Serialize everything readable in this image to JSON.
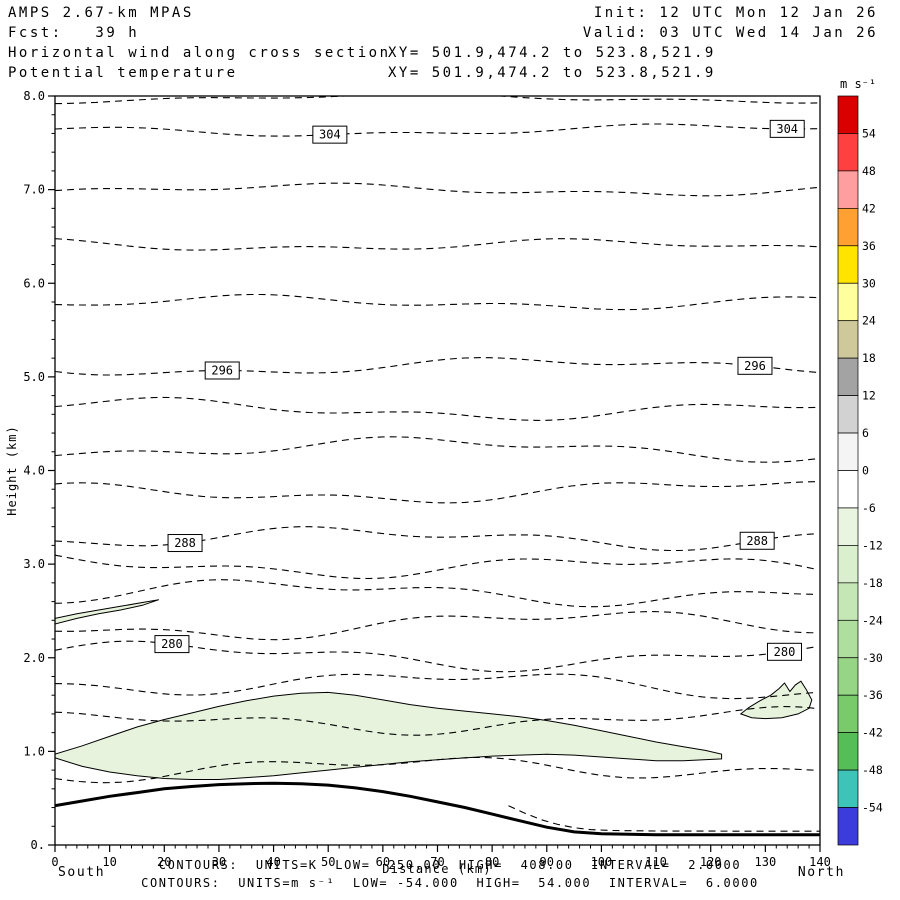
{
  "header": {
    "model": "AMPS 2.67-km MPAS",
    "fcst": "Fcst:   39 h",
    "field1": "Horizontal wind along cross section",
    "field2": "Potential temperature",
    "xy1": "XY= 501.9,474.2 to 523.8,521.9",
    "xy2": "XY= 501.9,474.2 to 523.8,521.9",
    "init": "Init: 12 UTC Mon 12 Jan 26",
    "valid": "Valid: 03 UTC Wed 14 Jan 26"
  },
  "footer": {
    "contours_k": "CONTOURS:  UNITS=K  LOW=  250.00  HIGH=  408.00  INTERVAL=  2.0000",
    "contours_ms": "CONTOURS:  UNITS=m s⁻¹  LOW= -54.000  HIGH=  54.000  INTERVAL=  6.0000",
    "xlabel": "Distance (km)",
    "south": "South",
    "north": "North"
  },
  "chart_data": {
    "type": "contour-cross-section",
    "title": "Horizontal wind along cross section / Potential temperature",
    "xlabel": "Distance (km)",
    "ylabel": "Height (km)",
    "xlim": [
      0,
      140
    ],
    "ylim": [
      0,
      8
    ],
    "theta_units": "K",
    "theta_low": 250.0,
    "theta_high": 408.0,
    "theta_interval": 2.0,
    "wind_units": "m s⁻¹",
    "wind_low": -54.0,
    "wind_high": 54.0,
    "wind_interval": 6.0,
    "x_tick_labels": [
      "0",
      "10",
      "20",
      "30",
      "40",
      "50",
      "60",
      "70",
      "80",
      "90",
      "100",
      "110",
      "120",
      "130",
      "140"
    ],
    "y_ticks": [
      {
        "v": 8,
        "label": "8.0"
      },
      {
        "v": 7,
        "label": "7.0"
      },
      {
        "v": 6,
        "label": "6.0"
      },
      {
        "v": 5,
        "label": "5.0"
      },
      {
        "v": 4,
        "label": "4.0"
      },
      {
        "v": 3,
        "label": "3.0"
      },
      {
        "v": 2,
        "label": "2.0"
      },
      {
        "v": 1,
        "label": "1.0"
      },
      {
        "v": 0,
        "label": "0."
      }
    ],
    "theta_contours": [
      {
        "value": 306,
        "height_km": 7.97
      },
      {
        "value": 304,
        "height_km": 7.63
      },
      {
        "value": 302,
        "height_km": 7.01
      },
      {
        "value": 300,
        "height_km": 6.4
      },
      {
        "value": 298,
        "height_km": 5.78
      },
      {
        "value": 296,
        "height_km": 5.12
      },
      {
        "value": 294,
        "height_km": 4.66
      },
      {
        "value": 292,
        "height_km": 4.22
      },
      {
        "value": 290,
        "height_km": 3.76
      },
      {
        "value": 288,
        "height_km": 3.3
      },
      {
        "value": 286,
        "height_km": 2.98
      },
      {
        "value": 284,
        "height_km": 2.67
      },
      {
        "value": 282,
        "height_km": 2.36
      },
      {
        "value": 280,
        "height_km": 2.04
      },
      {
        "value": 278,
        "height_km": 1.71
      },
      {
        "value": 276,
        "height_km": 1.3
      },
      {
        "value": 274,
        "height_km": 0.84
      }
    ],
    "contour_labels": [
      {
        "value": 304,
        "x_km": 50.3
      },
      {
        "value": 304,
        "x_km": 134.0
      },
      {
        "value": 296,
        "x_km": 30.6
      },
      {
        "value": 296,
        "x_km": 128.1
      },
      {
        "value": 288,
        "x_km": 23.8
      },
      {
        "value": 288,
        "x_km": 128.5
      },
      {
        "value": 280,
        "x_km": 21.4
      },
      {
        "value": 280,
        "x_km": 133.5
      }
    ],
    "terrain": [
      [
        0,
        0.42
      ],
      [
        5,
        0.47
      ],
      [
        10,
        0.52
      ],
      [
        15,
        0.56
      ],
      [
        20,
        0.6
      ],
      [
        25,
        0.625
      ],
      [
        30,
        0.645
      ],
      [
        35,
        0.655
      ],
      [
        40,
        0.66
      ],
      [
        45,
        0.655
      ],
      [
        50,
        0.64
      ],
      [
        55,
        0.61
      ],
      [
        60,
        0.57
      ],
      [
        65,
        0.52
      ],
      [
        70,
        0.46
      ],
      [
        75,
        0.4
      ],
      [
        80,
        0.33
      ],
      [
        85,
        0.26
      ],
      [
        90,
        0.19
      ],
      [
        95,
        0.14
      ],
      [
        100,
        0.12
      ],
      [
        110,
        0.11
      ],
      [
        120,
        0.11
      ],
      [
        130,
        0.11
      ],
      [
        140,
        0.11
      ]
    ],
    "surface_dashed": [
      [
        83,
        0.42
      ],
      [
        86,
        0.34
      ],
      [
        89,
        0.27
      ],
      [
        92,
        0.22
      ],
      [
        95,
        0.185
      ],
      [
        98,
        0.165
      ],
      [
        102,
        0.155
      ],
      [
        110,
        0.15
      ],
      [
        120,
        0.148
      ],
      [
        130,
        0.147
      ],
      [
        140,
        0.147
      ]
    ],
    "region_fill": "#e7f3dc",
    "wind_regions": [
      {
        "name": "wind-band-main",
        "points": [
          [
            0,
            0.97
          ],
          [
            5,
            1.06
          ],
          [
            10,
            1.16
          ],
          [
            15,
            1.26
          ],
          [
            20,
            1.34
          ],
          [
            25,
            1.41
          ],
          [
            30,
            1.48
          ],
          [
            35,
            1.54
          ],
          [
            40,
            1.59
          ],
          [
            45,
            1.62
          ],
          [
            50,
            1.63
          ],
          [
            55,
            1.6
          ],
          [
            60,
            1.55
          ],
          [
            65,
            1.5
          ],
          [
            70,
            1.46
          ],
          [
            75,
            1.43
          ],
          [
            80,
            1.4
          ],
          [
            85,
            1.37
          ],
          [
            90,
            1.33
          ],
          [
            95,
            1.28
          ],
          [
            100,
            1.22
          ],
          [
            105,
            1.16
          ],
          [
            110,
            1.1
          ],
          [
            115,
            1.05
          ],
          [
            119,
            1.01
          ],
          [
            122,
            0.97
          ],
          [
            122,
            0.92
          ],
          [
            115,
            0.9
          ],
          [
            110,
            0.9
          ],
          [
            105,
            0.92
          ],
          [
            100,
            0.94
          ],
          [
            95,
            0.96
          ],
          [
            90,
            0.97
          ],
          [
            85,
            0.96
          ],
          [
            80,
            0.95
          ],
          [
            75,
            0.93
          ],
          [
            70,
            0.91
          ],
          [
            65,
            0.89
          ],
          [
            60,
            0.86
          ],
          [
            55,
            0.83
          ],
          [
            50,
            0.8
          ],
          [
            45,
            0.77
          ],
          [
            40,
            0.74
          ],
          [
            35,
            0.72
          ],
          [
            30,
            0.7
          ],
          [
            25,
            0.7
          ],
          [
            20,
            0.71
          ],
          [
            15,
            0.74
          ],
          [
            10,
            0.78
          ],
          [
            5,
            0.84
          ],
          [
            0,
            0.93
          ]
        ]
      },
      {
        "name": "wind-band-right",
        "points": [
          [
            125.5,
            1.4
          ],
          [
            127,
            1.47
          ],
          [
            129,
            1.54
          ],
          [
            131,
            1.6
          ],
          [
            132.5,
            1.67
          ],
          [
            133.5,
            1.73
          ],
          [
            134.5,
            1.64
          ],
          [
            135.5,
            1.71
          ],
          [
            136.5,
            1.75
          ],
          [
            137.5,
            1.66
          ],
          [
            138.5,
            1.55
          ],
          [
            138,
            1.46
          ],
          [
            136,
            1.4
          ],
          [
            133,
            1.36
          ],
          [
            130,
            1.35
          ],
          [
            127.5,
            1.36
          ]
        ]
      },
      {
        "name": "wind-band-left-sliver",
        "points": [
          [
            0,
            2.42
          ],
          [
            4,
            2.47
          ],
          [
            8,
            2.51
          ],
          [
            12,
            2.55
          ],
          [
            16,
            2.59
          ],
          [
            19,
            2.62
          ],
          [
            16,
            2.56
          ],
          [
            12,
            2.51
          ],
          [
            8,
            2.47
          ],
          [
            4,
            2.42
          ],
          [
            0,
            2.36
          ]
        ]
      }
    ],
    "colorbar": {
      "title": "m s⁻¹",
      "tick_labels": [
        "54",
        "48",
        "42",
        "36",
        "30",
        "24",
        "18",
        "12",
        "6",
        "0",
        "-6",
        "-12",
        "-18",
        "-24",
        "-30",
        "-36",
        "-42",
        "-48",
        "-54"
      ],
      "colors": [
        "#db0000",
        "#ff4040",
        "#ff9e9e",
        "#ffa033",
        "#ffe400",
        "#ffff9e",
        "#cfc89b",
        "#a3a3a3",
        "#d2d2d2",
        "#f4f4f4",
        "#ffffff",
        "#e9f4e1",
        "#d9efcd",
        "#c5e7b5",
        "#afdf9e",
        "#95d585",
        "#78ca6b",
        "#56be57",
        "#3ec3b8",
        "#3c3cdc"
      ]
    }
  }
}
